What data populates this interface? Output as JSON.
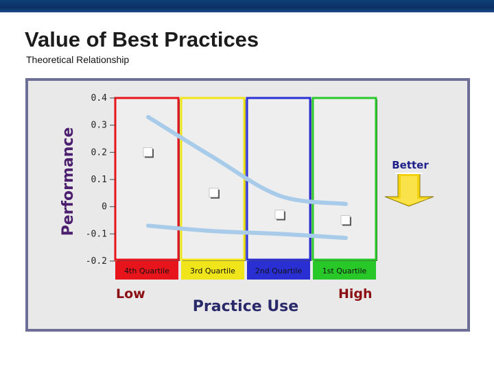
{
  "slide": {
    "title": "Value of Best Practices",
    "subtitle": "Theoretical Relationship"
  },
  "colors": {
    "top_band": "#0e3e78",
    "frame_border": "#6e6f96",
    "frame_bg": "#e9e9e9",
    "curve": "#a9cbea",
    "marker": "#ffffff",
    "arrow": "#f5d20f"
  },
  "chart_data": {
    "type": "scatter",
    "title": "",
    "xlabel": "Practice Use",
    "ylabel": "Performance",
    "ylim": [
      -0.2,
      0.4
    ],
    "y_ticks": [
      "0.4",
      "0.3",
      "0.2",
      "0.1",
      "0",
      "-0.1",
      "-0.2"
    ],
    "grid": false,
    "legend": "none",
    "categories": [
      "4th Quartile",
      "3rd Quartile",
      "2nd Quartile",
      "1st Quartile"
    ],
    "band_colors": [
      "#e8141b",
      "#f0e41a",
      "#2a2fd4",
      "#28c828"
    ],
    "values": [
      0.2,
      0.05,
      -0.03,
      -0.05
    ],
    "x_axis_low_label": "Low",
    "x_axis_high_label": "High",
    "annotation": "Better",
    "curves": [
      {
        "name": "upper",
        "values": [
          0.33,
          0.18,
          0.04,
          0.01
        ]
      },
      {
        "name": "lower",
        "values": [
          -0.07,
          -0.09,
          -0.1,
          -0.115
        ]
      }
    ]
  }
}
